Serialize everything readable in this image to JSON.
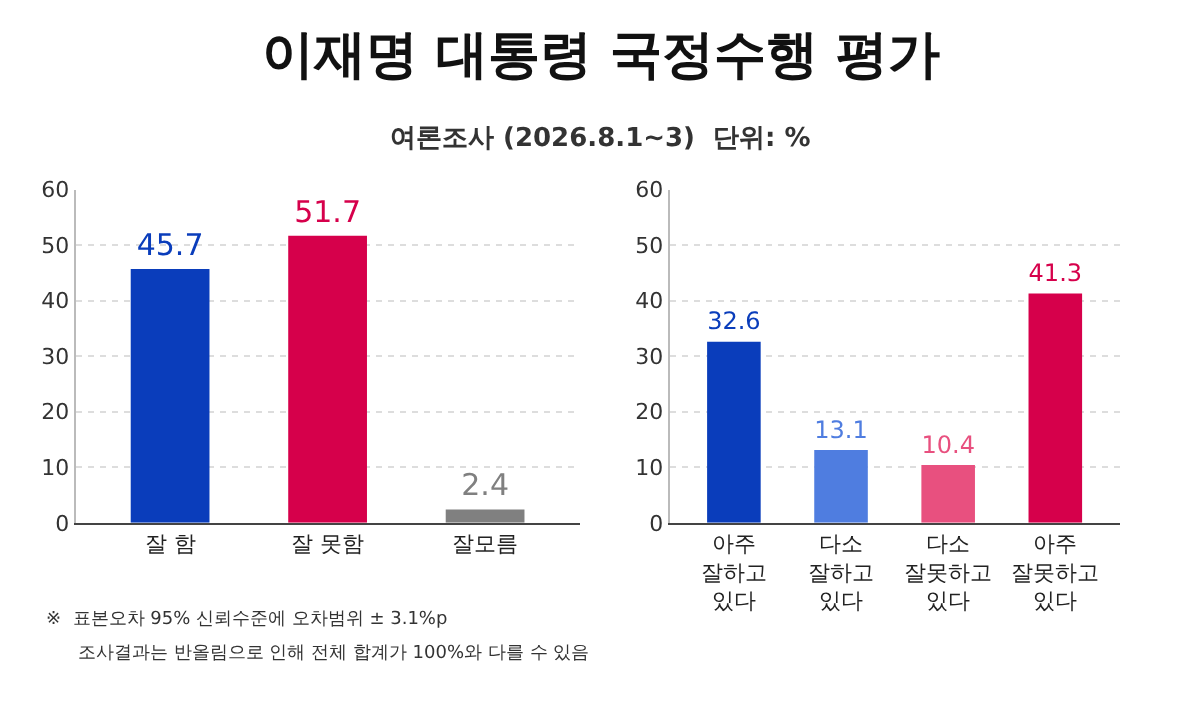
{
  "chart_data": [
    {
      "type": "bar",
      "title": "이재명 대통령 국정수행 평가",
      "subtitle": "여론조사 (2026.8.1~3)  단위: %",
      "categories": [
        "잘 함",
        "잘 못함",
        "잘모름"
      ],
      "values": [
        45.7,
        51.7,
        2.4
      ],
      "colors": [
        "#0a3dbb",
        "#d6004b",
        "#808080"
      ],
      "ylim": [
        0,
        60
      ],
      "yticks": [
        0,
        10,
        20,
        30,
        40,
        50,
        60
      ],
      "grid": "y",
      "data_labels": true,
      "annotations": [
        "※  표본오차 95% 신뢰수준에 오차범위 ± 3.1%p",
        "조사결과는 반올림으로 인해 전체 합계가 100%와 다를 수 있음"
      ]
    },
    {
      "type": "bar",
      "categories": [
        "아주\n잘하고\n있다",
        "다소\n잘하고\n있다",
        "다소\n잘못하고\n있다",
        "아주\n잘못하고\n있다"
      ],
      "values": [
        32.6,
        13.1,
        10.4,
        41.3
      ],
      "colors": [
        "#0a3dbb",
        "#4f7de0",
        "#e8507f",
        "#d6004b"
      ],
      "ylim": [
        0,
        60
      ],
      "yticks": [
        0,
        10,
        20,
        30,
        40,
        50,
        60
      ],
      "grid": "y",
      "data_labels": true
    }
  ]
}
